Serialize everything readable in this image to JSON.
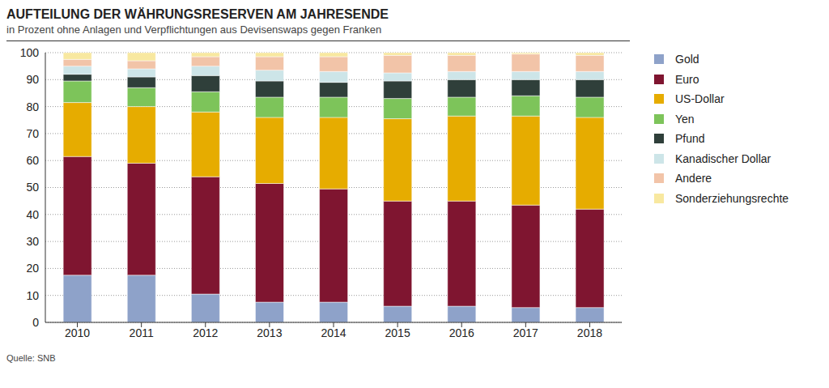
{
  "chart_data": {
    "type": "bar",
    "title": "AUFTEILUNG DER WÄHRUNGSRESERVEN AM JAHRESENDE",
    "subtitle": "in Prozent ohne Anlagen und Verpflichtungen aus Devisenswaps gegen Franken",
    "source": "Quelle: SNB",
    "categories": [
      "2010",
      "2011",
      "2012",
      "2013",
      "2014",
      "2015",
      "2016",
      "2017",
      "2018"
    ],
    "series": [
      {
        "name": "Gold",
        "color": "#8ea2c9",
        "values": [
          17.5,
          17.5,
          10.5,
          7.5,
          7.5,
          6,
          6,
          5.5,
          5.5
        ]
      },
      {
        "name": "Euro",
        "color": "#7f1530",
        "values": [
          44,
          41.5,
          43.5,
          44,
          42,
          39,
          39,
          38,
          36.5
        ]
      },
      {
        "name": "US-Dollar",
        "color": "#e6ac00",
        "values": [
          20,
          21,
          24,
          24.5,
          26.5,
          30.5,
          31.5,
          33,
          34
        ]
      },
      {
        "name": "Yen",
        "color": "#7dc45a",
        "values": [
          8,
          7,
          7.5,
          7.5,
          7.5,
          7.5,
          7,
          7.5,
          7.5
        ]
      },
      {
        "name": "Pfund",
        "color": "#2f3f3a",
        "values": [
          2.5,
          4,
          6,
          6,
          5.5,
          6.5,
          6.5,
          6,
          6.5
        ]
      },
      {
        "name": "Kanadischer Dollar",
        "color": "#cde5e8",
        "values": [
          3,
          3,
          3.5,
          4,
          4,
          3,
          3,
          3,
          3
        ]
      },
      {
        "name": "Andere",
        "color": "#f2c4a8",
        "values": [
          2.5,
          3,
          3.5,
          5,
          5.5,
          6.5,
          6,
          6.5,
          6
        ]
      },
      {
        "name": "Sonderziehungsrechte",
        "color": "#f8e8a0",
        "values": [
          2.5,
          3,
          1.5,
          1.5,
          1.5,
          1,
          1,
          0.5,
          1
        ]
      }
    ],
    "ylim": [
      0,
      100
    ],
    "yticks": [
      0,
      10,
      20,
      30,
      40,
      50,
      60,
      70,
      80,
      90,
      100
    ],
    "grid": true,
    "stacked": true,
    "legend": "right"
  }
}
